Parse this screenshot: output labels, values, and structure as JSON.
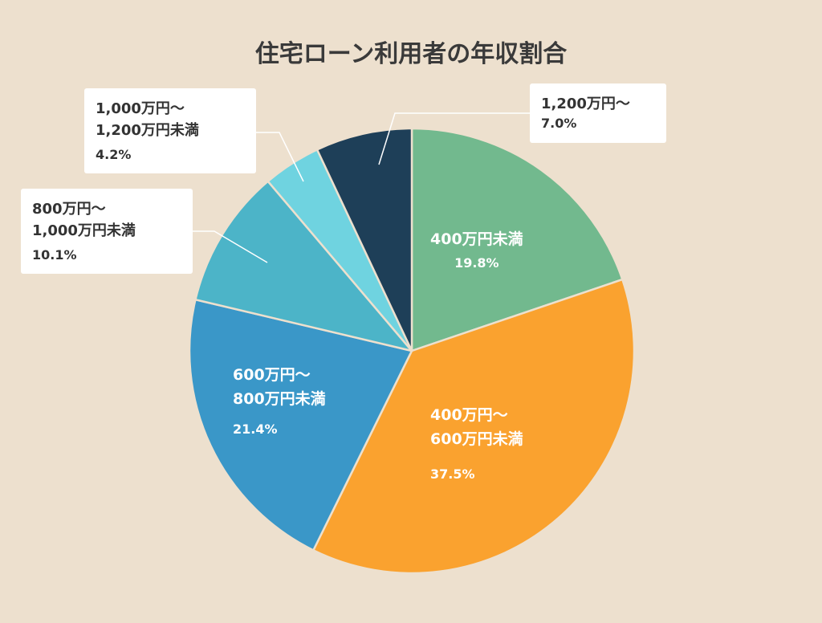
{
  "chart_data": {
    "type": "pie",
    "title": "住宅ローン利用者の年収割合",
    "start_angle_deg": 0,
    "direction": "clockwise",
    "colors": {
      "background": "#ede0ce",
      "slice_border": "#ede0ce",
      "inside_label": "#ffffff",
      "callout_text": "#333333",
      "leader_line": "#ffffff"
    },
    "slices": [
      {
        "label": "400万円未満",
        "display": "400万円未満",
        "value": 19.8,
        "value_label": "19.8%",
        "color": "#72b98e",
        "label_position": "inside"
      },
      {
        "label": "400万円〜600万円未満",
        "display": "400万円〜\n600万円未満",
        "value": 37.5,
        "value_label": "37.5%",
        "color": "#faa22f",
        "label_position": "inside"
      },
      {
        "label": "600万円〜800万円未満",
        "display": "600万円〜\n800万円未満",
        "value": 21.4,
        "value_label": "21.4%",
        "color": "#3a97c8",
        "label_position": "inside"
      },
      {
        "label": "800万円〜1,000万円未満",
        "display": "800万円〜\n1,000万円未満",
        "value": 10.1,
        "value_label": "10.1%",
        "color": "#4cb4c8",
        "label_position": "callout"
      },
      {
        "label": "1,000万円〜1,200万円未満",
        "display": "1,000万円〜\n1,200万円未満",
        "value": 4.2,
        "value_label": "4.2%",
        "color": "#6fd3e0",
        "label_position": "callout"
      },
      {
        "label": "1,200万円〜",
        "display": "1,200万円〜",
        "value": 7.0,
        "value_label": "7.0%",
        "color": "#1e3f58",
        "label_position": "callout"
      }
    ]
  }
}
